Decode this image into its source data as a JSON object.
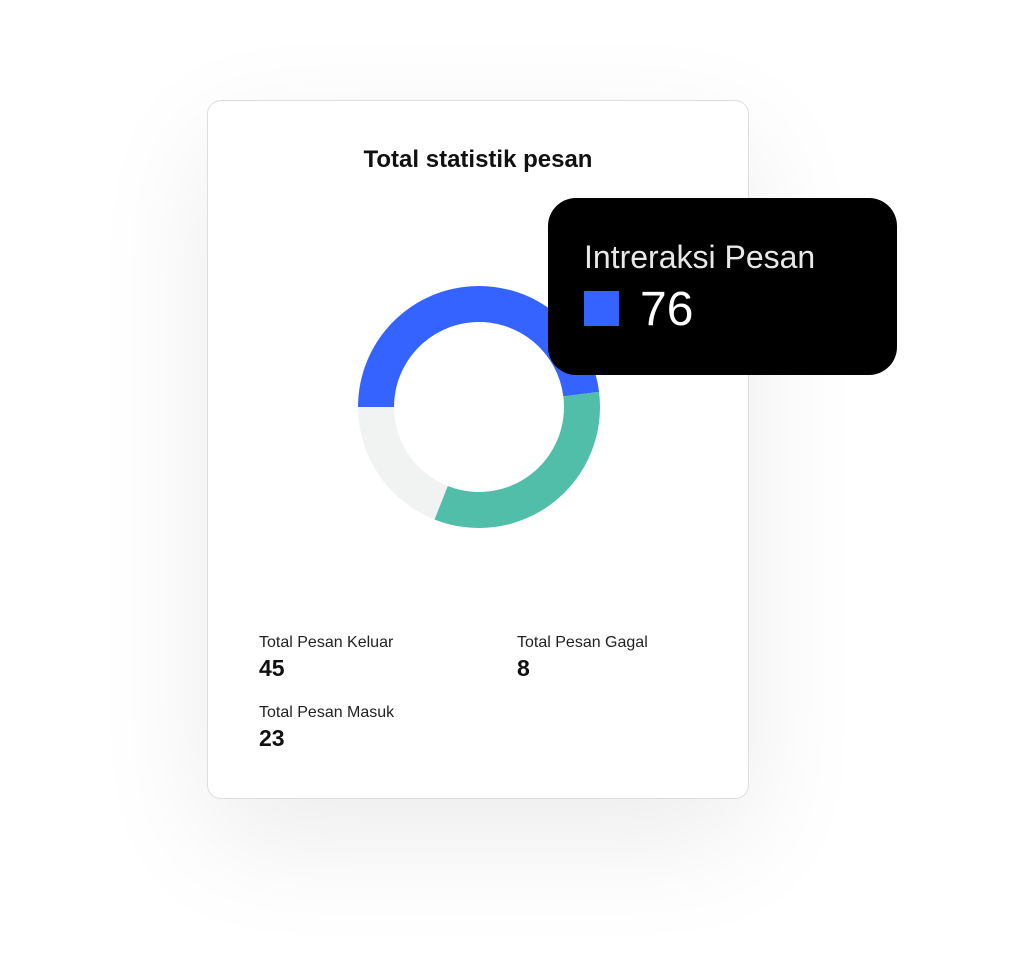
{
  "card": {
    "title": "Total statistik pesan"
  },
  "chart_data": {
    "type": "pie",
    "donut": true,
    "slices": [
      {
        "value": 48,
        "color": "#3563ff"
      },
      {
        "value": 33,
        "color": "#50bea9"
      },
      {
        "value": 19,
        "color": "#f1f3f3"
      }
    ]
  },
  "stats": [
    {
      "label": "Total Pesan Keluar",
      "value": "45"
    },
    {
      "label": "Total Pesan Gagal",
      "value": "8"
    },
    {
      "label": "Total Pesan Masuk",
      "value": "23"
    }
  ],
  "tooltip": {
    "label": "Intreraksi Pesan",
    "value": "76",
    "color": "#3563ff"
  }
}
